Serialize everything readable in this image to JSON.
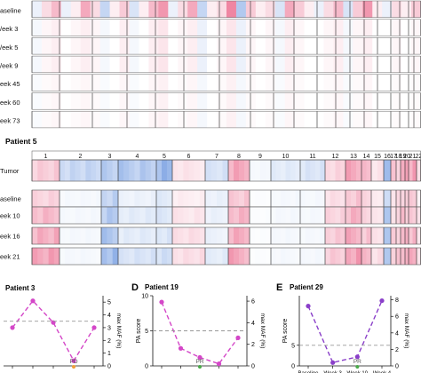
{
  "chart_data": [
    {
      "type": "heatmap",
      "panel": "copy-number-top",
      "rows": [
        "aseline",
        "/eek 3",
        "/eek 5",
        "/eek 9",
        "eek 45",
        "eek 60",
        "eek 73"
      ],
      "chromosomes": [],
      "track_intensity": [
        [
          -0.1,
          0.2,
          0.4,
          -0.1,
          0.1,
          0.5,
          0.2,
          -0.3,
          0.1,
          0.3,
          -0.2,
          0.1,
          0.4,
          0.6,
          -0.1,
          0.2,
          0.5,
          -0.3,
          0.1,
          0.2,
          0.7,
          -0.4,
          0.3,
          0.1,
          0.2,
          -0.2,
          0.5,
          0.3,
          0.1,
          -0.1,
          0.2,
          0.4,
          -0.2,
          0.3,
          0.6,
          0.1,
          -0.1,
          0.2,
          0.1,
          0.3
        ],
        [
          -0.05,
          0.05,
          0.1,
          0,
          0.05,
          0.1,
          0.05,
          -0.05,
          0,
          0.1,
          -0.05,
          0,
          0.1,
          0.15,
          0,
          0.05,
          0.1,
          -0.1,
          0,
          0.05,
          0.15,
          -0.1,
          0.05,
          0,
          0.05,
          -0.05,
          0.1,
          0.05,
          0,
          0,
          0.05,
          0.1,
          -0.05,
          0.05,
          0.1,
          0,
          0,
          0.05,
          0,
          0.05
        ],
        [
          -0.05,
          0.05,
          0.1,
          0,
          0.05,
          0.1,
          0.05,
          -0.05,
          0,
          0.1,
          -0.05,
          0,
          0.1,
          0.15,
          0,
          0.05,
          0.1,
          -0.1,
          0,
          0.05,
          0.15,
          -0.1,
          0.05,
          0,
          0.05,
          -0.05,
          0.1,
          0.05,
          0,
          0,
          0.05,
          0.1,
          -0.05,
          0.05,
          0.1,
          0,
          0,
          0.05,
          0,
          0.05
        ],
        [
          -0.05,
          0.05,
          0.1,
          0,
          0.05,
          0.1,
          0.05,
          -0.05,
          0,
          0.1,
          -0.05,
          0,
          0.1,
          0.15,
          0,
          0.05,
          0.1,
          -0.1,
          0,
          0.05,
          0.15,
          -0.1,
          0.05,
          0,
          0.05,
          -0.05,
          0.1,
          0.05,
          0,
          0,
          0.05,
          0.1,
          -0.05,
          0.05,
          0.1,
          0,
          0,
          0.05,
          0,
          0.05
        ],
        [
          -0.03,
          0.03,
          0.05,
          0,
          0.03,
          0.05,
          0.03,
          -0.03,
          0,
          0.05,
          -0.03,
          0,
          0.05,
          0.08,
          0,
          0.03,
          0.05,
          -0.05,
          0,
          0.03,
          0.08,
          -0.05,
          0.03,
          0,
          0.03,
          -0.03,
          0.05,
          0.03,
          0,
          0,
          0.03,
          0.05,
          -0.03,
          0.03,
          0.05,
          0,
          0,
          0.03,
          0,
          0.03
        ],
        [
          -0.03,
          0.03,
          0.05,
          0,
          0.03,
          0.05,
          0.03,
          -0.03,
          0,
          0.05,
          -0.03,
          0,
          0.05,
          0.08,
          0,
          0.03,
          0.05,
          -0.05,
          0,
          0.03,
          0.08,
          -0.05,
          0.03,
          0,
          0.03,
          -0.03,
          0.05,
          0.03,
          0,
          0,
          0.03,
          0.05,
          -0.03,
          0.03,
          0.05,
          0,
          0,
          0.03,
          0,
          0.03
        ],
        [
          -0.03,
          0.03,
          0.05,
          0,
          0.03,
          0.05,
          0.03,
          -0.03,
          0,
          0.05,
          -0.03,
          0,
          0.05,
          0.08,
          0,
          0.03,
          0.05,
          -0.05,
          0,
          0.03,
          0.08,
          -0.05,
          0.03,
          0,
          0.03,
          -0.03,
          0.05,
          0.03,
          0,
          0,
          0.03,
          0.05,
          -0.03,
          0.03,
          0.05,
          0,
          0,
          0.03,
          0,
          0.03
        ]
      ],
      "colors": {
        "gain": "#e8527a",
        "loss": "#3f77d6",
        "neutral": "#ffffff"
      }
    },
    {
      "type": "heatmap",
      "panel": "copy-number-patient-5",
      "title": "Patient 5",
      "rows": [
        "Tumor",
        "aseline",
        "eek 10",
        "eek 16",
        "eek 21"
      ],
      "chromosomes": [
        "1",
        "2",
        "3",
        "4",
        "5",
        "6",
        "7",
        "8",
        "9",
        "10",
        "11",
        "12",
        "13",
        "14",
        "15",
        "16",
        "17",
        "18",
        "19",
        "20",
        "21",
        "22"
      ],
      "chromosome_intensity": [
        [
          0.3,
          -0.3,
          -0.4,
          -0.4,
          -0.5,
          0.15,
          -0.2,
          0.5,
          -0.05,
          -0.15,
          -0.2,
          0.25,
          0.55,
          0.35,
          0.15,
          -0.5,
          0.3,
          0.3,
          0.5,
          0.5,
          0.55,
          0.2
        ],
        [
          0.25,
          -0.05,
          -0.35,
          -0.1,
          -0.15,
          0.1,
          -0.1,
          0.3,
          -0.02,
          -0.05,
          -0.05,
          0.2,
          0.35,
          0.25,
          0.1,
          -0.3,
          0.15,
          0.2,
          0.3,
          0.3,
          0.3,
          0.1
        ],
        [
          0.4,
          -0.05,
          -0.4,
          -0.15,
          -0.2,
          0.15,
          -0.1,
          0.4,
          -0.02,
          -0.05,
          -0.05,
          0.25,
          0.45,
          0.3,
          0.15,
          -0.35,
          0.2,
          0.25,
          0.35,
          0.35,
          0.35,
          0.15
        ],
        [
          0.45,
          -0.05,
          -0.45,
          -0.15,
          -0.2,
          0.2,
          -0.1,
          0.45,
          -0.02,
          -0.05,
          -0.05,
          0.3,
          0.5,
          0.35,
          0.2,
          -0.4,
          0.25,
          0.3,
          0.4,
          0.4,
          0.4,
          0.15
        ],
        [
          0.5,
          -0.05,
          -0.5,
          -0.2,
          -0.25,
          0.2,
          -0.15,
          0.5,
          -0.02,
          -0.05,
          -0.05,
          0.3,
          0.55,
          0.4,
          0.2,
          -0.45,
          0.25,
          0.3,
          0.45,
          0.45,
          0.45,
          0.2
        ]
      ],
      "colors": {
        "gain": "#e8527a",
        "loss": "#3f77d6",
        "neutral": "#ffffff"
      }
    },
    {
      "type": "line",
      "panel": "",
      "title": "Patient 3",
      "x": [
        "",
        "",
        "",
        "",
        ""
      ],
      "series": [
        {
          "axis": "right",
          "values": [
            3.0,
            5.1,
            3.4,
            0.4,
            3.0
          ],
          "color": "#d447c8"
        },
        {
          "axis": "right",
          "values": [
            3.5,
            3.5,
            3.5,
            3.5,
            3.5
          ],
          "color": "#999999",
          "style": "dashed"
        }
      ],
      "ylabel": "",
      "y2label": "max MAF (%)",
      "y2lim": [
        0,
        5.5
      ],
      "y2ticks": [
        0,
        1,
        2,
        3,
        4,
        5
      ],
      "annotations": [
        {
          "text": "PD",
          "x_index": 3,
          "color": "#f0a13a"
        }
      ]
    },
    {
      "type": "line",
      "panel": "D",
      "title": "Patient 19",
      "x": [
        "",
        "",
        "",
        "",
        ""
      ],
      "series": [
        {
          "axis": "left",
          "values": [
            9.1,
            2.5,
            1.2,
            0.3,
            4.0
          ],
          "color": "#d447c8"
        },
        {
          "axis": "left",
          "values": [
            5,
            5,
            5,
            5,
            5
          ],
          "color": "#999999",
          "style": "dashed"
        }
      ],
      "ylabel": "PA score",
      "y2label": "max MAF (%)",
      "ylim": [
        0,
        10
      ],
      "yticks": [
        0,
        5,
        10
      ],
      "y2lim": [
        0,
        6.5
      ],
      "y2ticks": [
        0,
        2,
        4,
        6
      ],
      "annotations": [
        {
          "text": "PR",
          "x_index": 2,
          "color": "#4aaa4a"
        }
      ]
    },
    {
      "type": "line",
      "panel": "E",
      "title": "Patient 29",
      "x": [
        "Baseline",
        "Week 3",
        "Week 10",
        "Week 4"
      ],
      "series": [
        {
          "axis": "left",
          "values": [
            14.5,
            0.8,
            2.2,
            15.8
          ],
          "color": "#8a3fc9"
        },
        {
          "axis": "left",
          "values": [
            5,
            5,
            5,
            5
          ],
          "color": "#999999",
          "style": "dashed"
        }
      ],
      "ylabel": "PA score",
      "y2label": "max MAF (%)",
      "ylim": [
        0,
        17
      ],
      "yticks": [
        0,
        5
      ],
      "y2lim": [
        0,
        8.5
      ],
      "y2ticks": [
        0,
        2,
        4,
        6,
        8
      ],
      "annotations": [
        {
          "text": "PR",
          "x_index": 2,
          "color": "#4aaa4a"
        }
      ]
    }
  ]
}
